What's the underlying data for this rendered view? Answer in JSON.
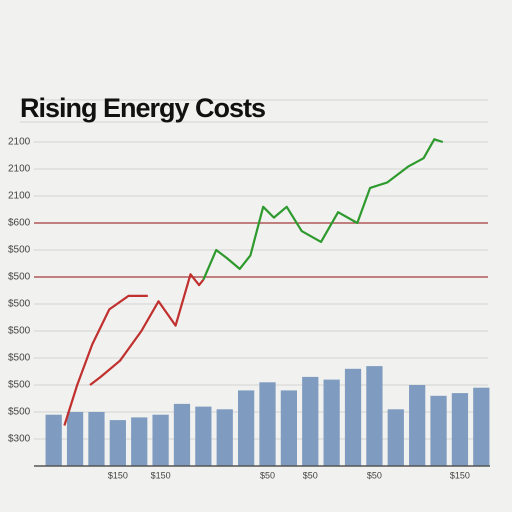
{
  "chart_data": {
    "type": "combo",
    "title": "Rising Energy Costs",
    "categories": [
      "",
      "",
      "",
      "$150",
      "",
      "$150",
      "",
      "",
      "",
      "",
      "$50",
      "",
      "$50",
      "",
      "",
      "$50",
      "",
      "",
      "",
      "$150",
      ""
    ],
    "values": [
      1.9,
      2.0,
      2.0,
      1.7,
      1.8,
      1.9,
      2.3,
      2.2,
      2.1,
      2.8,
      3.1,
      2.8,
      3.3,
      3.2,
      3.6,
      3.7,
      2.1,
      3.0,
      2.6,
      2.7,
      2.9
    ],
    "color": "#7f9cc0",
    "xlim": [
      -0.5,
      20.5
    ],
    "ylim": [
      0,
      14
    ],
    "yticks": [
      {
        "value": 1,
        "label": "$300"
      },
      {
        "value": 2,
        "label": "$500"
      },
      {
        "value": 3,
        "label": "$500"
      },
      {
        "value": 4,
        "label": "$500"
      },
      {
        "value": 5,
        "label": "$500"
      },
      {
        "value": 6,
        "label": "$500"
      },
      {
        "value": 7,
        "label": "$500"
      },
      {
        "value": 8,
        "label": "$500"
      },
      {
        "value": 9,
        "label": "$600"
      },
      {
        "value": 10,
        "label": "2100"
      },
      {
        "value": 11,
        "label": "2100"
      },
      {
        "value": 12,
        "label": "2100"
      }
    ],
    "grid": true,
    "reference_lines": [
      7,
      9
    ],
    "reference_color": "#a33a3a",
    "series": [
      {
        "color": "#c0302e",
        "x": [
          0.5,
          1.1,
          1.8,
          2.6,
          3.5,
          4.4
        ],
        "values": [
          1.5,
          3.0,
          4.5,
          5.8,
          6.3,
          6.3
        ]
      },
      {
        "color": "#c0302e",
        "x": [
          1.7,
          2.2,
          3.1,
          4.1,
          4.9,
          5.7,
          6.4,
          6.8,
          7.0
        ],
        "values": [
          3.0,
          3.3,
          3.9,
          5.0,
          6.1,
          5.2,
          7.1,
          6.7,
          6.9
        ]
      },
      {
        "color": "#2e9a2e",
        "x": [
          7.0,
          7.6,
          8.1,
          8.7,
          9.2,
          9.8,
          10.3,
          10.9,
          11.6,
          12.5,
          13.3,
          14.2,
          14.8,
          15.6,
          16.6,
          17.3,
          17.8,
          18.2
        ],
        "values": [
          6.9,
          8.0,
          7.7,
          7.3,
          7.8,
          9.6,
          9.2,
          9.6,
          8.7,
          8.3,
          9.4,
          9.0,
          10.3,
          10.5,
          11.1,
          11.4,
          12.1,
          12.0
        ]
      }
    ]
  }
}
